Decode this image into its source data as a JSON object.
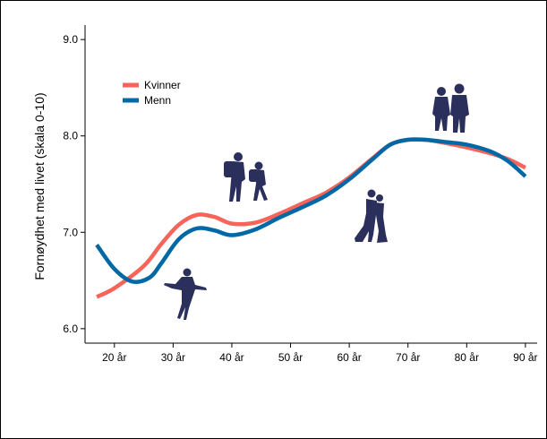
{
  "chart_data": {
    "type": "line",
    "title": "",
    "xlabel": "",
    "ylabel": "Fornøydhet med livet (skala 0-10)",
    "x_ticks": [
      "20 år",
      "30 år",
      "40 år",
      "50 år",
      "60 år",
      "70 år",
      "80 år",
      "90 år"
    ],
    "y_ticks": [
      "6.0",
      "7.0",
      "8.0",
      "9.0"
    ],
    "xlim": [
      15,
      92
    ],
    "ylim": [
      5.85,
      9.15
    ],
    "legend_position": "top-left",
    "grid": false,
    "series": [
      {
        "name": "Kvinner",
        "color": "#F8635A",
        "x": [
          17,
          20,
          25,
          28,
          31,
          34,
          37,
          40,
          44,
          48,
          52,
          56,
          60,
          64,
          67,
          70,
          73,
          76,
          80,
          84,
          87,
          90
        ],
        "y": [
          6.33,
          6.42,
          6.65,
          6.88,
          7.08,
          7.18,
          7.16,
          7.09,
          7.1,
          7.19,
          7.3,
          7.41,
          7.57,
          7.77,
          7.91,
          7.96,
          7.96,
          7.93,
          7.88,
          7.82,
          7.76,
          7.67
        ]
      },
      {
        "name": "Menn",
        "color": "#0068A5",
        "x": [
          17,
          20,
          23,
          26,
          28,
          31,
          34,
          37,
          40,
          44,
          48,
          52,
          56,
          60,
          64,
          67,
          70,
          73,
          76,
          80,
          84,
          87,
          90
        ],
        "y": [
          6.87,
          6.62,
          6.49,
          6.53,
          6.68,
          6.93,
          7.04,
          7.02,
          6.97,
          7.03,
          7.15,
          7.26,
          7.38,
          7.55,
          7.76,
          7.91,
          7.96,
          7.96,
          7.94,
          7.91,
          7.84,
          7.74,
          7.58
        ]
      }
    ],
    "icons": [
      "skater-icon",
      "hikers-icon",
      "dancing-couple-icon",
      "elderly-couple-icon"
    ]
  }
}
